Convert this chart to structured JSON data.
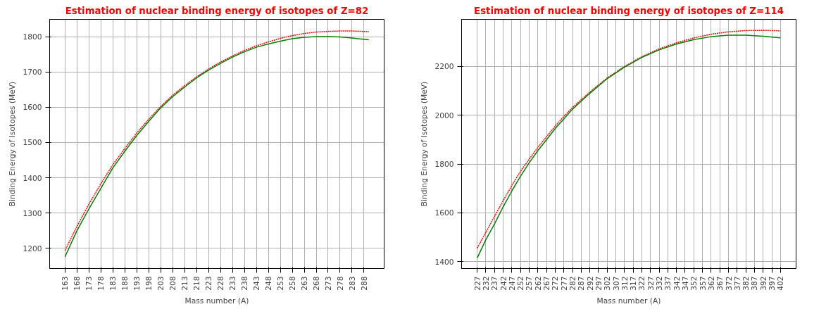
{
  "chart_data": [
    {
      "type": "line",
      "title": "Estimation of nuclear binding energy of isotopes of Z=82",
      "xlabel": "Mass number (A)",
      "ylabel": "Binding Energy of Isotopes (MeV)",
      "xlim": [
        156.6,
        296.4
      ],
      "ylim": [
        1143,
        1849
      ],
      "xticks": [
        163,
        168,
        173,
        178,
        183,
        188,
        193,
        198,
        203,
        208,
        213,
        218,
        223,
        228,
        233,
        238,
        243,
        248,
        253,
        258,
        263,
        268,
        273,
        278,
        283,
        288
      ],
      "yticks": [
        1200,
        1300,
        1400,
        1500,
        1600,
        1700,
        1800
      ],
      "grid": true,
      "series": [
        {
          "color": "#ff0000",
          "line_style": "dotted",
          "x": [
            163,
            168,
            173,
            178,
            183,
            188,
            193,
            198,
            203,
            208,
            213,
            218,
            223,
            228,
            233,
            238,
            243,
            248,
            253,
            258,
            263,
            268,
            273,
            278,
            283,
            290
          ],
          "values": [
            1194,
            1262,
            1325,
            1383,
            1437,
            1483,
            1527,
            1566,
            1602,
            1634,
            1661,
            1686,
            1708,
            1728,
            1745,
            1761,
            1774,
            1785,
            1795,
            1803,
            1809,
            1813,
            1815,
            1816,
            1816,
            1814
          ]
        },
        {
          "color": "#008000",
          "line_style": "solid",
          "x": [
            163,
            168,
            173,
            178,
            183,
            188,
            193,
            198,
            203,
            208,
            213,
            218,
            223,
            228,
            233,
            238,
            243,
            248,
            253,
            258,
            263,
            268,
            273,
            278,
            283,
            290
          ],
          "values": [
            1176,
            1250,
            1312,
            1370,
            1428,
            1475,
            1520,
            1560,
            1598,
            1630,
            1657,
            1683,
            1705,
            1724,
            1742,
            1757,
            1770,
            1779,
            1787,
            1794,
            1798,
            1800,
            1800,
            1799,
            1796,
            1791
          ]
        }
      ]
    },
    {
      "type": "line",
      "title": "Estimation of nuclear binding energy of isotopes of Z=114",
      "xlabel": "Mass number (A)",
      "ylabel": "Binding Energy of Isotopes (MeV)",
      "xlim": [
        218,
        411
      ],
      "ylim": [
        1372,
        2393
      ],
      "xticks": [
        227,
        232,
        237,
        242,
        247,
        252,
        257,
        262,
        267,
        272,
        277,
        282,
        287,
        292,
        297,
        302,
        307,
        312,
        317,
        322,
        327,
        332,
        337,
        342,
        347,
        352,
        357,
        362,
        367,
        372,
        377,
        382,
        387,
        392,
        397,
        402
      ],
      "yticks": [
        1400,
        1600,
        1800,
        2000,
        2200
      ],
      "grid": true,
      "series": [
        {
          "color": "#ff0000",
          "line_style": "dotted",
          "x": [
            227,
            232,
            237,
            242,
            247,
            252,
            257,
            262,
            267,
            272,
            277,
            282,
            292,
            302,
            312,
            322,
            332,
            342,
            352,
            362,
            372,
            382,
            392,
            402
          ],
          "values": [
            1455,
            1520,
            1585,
            1650,
            1712,
            1770,
            1820,
            1868,
            1912,
            1955,
            1995,
            2032,
            2095,
            2153,
            2200,
            2240,
            2272,
            2297,
            2317,
            2332,
            2342,
            2347,
            2348,
            2346
          ]
        },
        {
          "color": "#008000",
          "line_style": "solid",
          "x": [
            227,
            232,
            237,
            242,
            247,
            252,
            257,
            262,
            267,
            272,
            277,
            282,
            292,
            302,
            312,
            322,
            332,
            342,
            352,
            362,
            372,
            382,
            392,
            402
          ],
          "values": [
            1415,
            1490,
            1555,
            1625,
            1690,
            1750,
            1805,
            1855,
            1900,
            1945,
            1985,
            2025,
            2090,
            2150,
            2197,
            2237,
            2268,
            2292,
            2310,
            2322,
            2328,
            2328,
            2324,
            2317
          ]
        }
      ]
    }
  ]
}
